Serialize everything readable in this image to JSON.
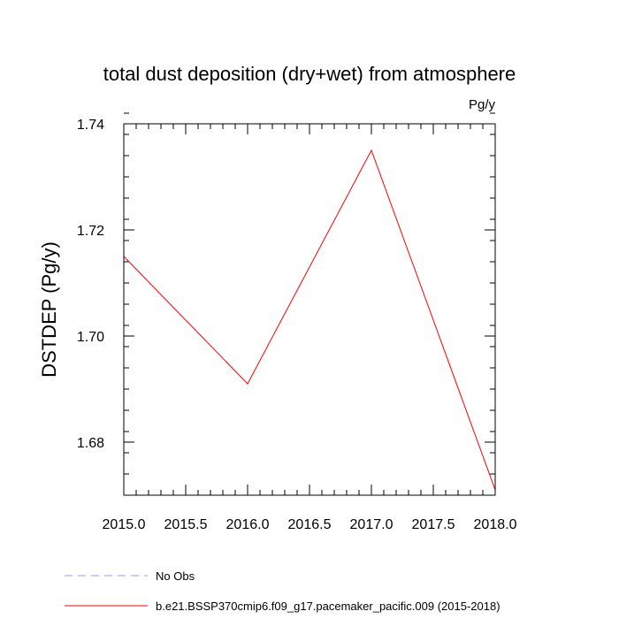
{
  "chart_data": {
    "type": "line",
    "title": "total dust deposition (dry+wet) from atmosphere",
    "units": "Pg/y",
    "xlabel": "",
    "ylabel": "DSTDEP  (Pg/y)",
    "xlim": [
      2015.0,
      2018.0
    ],
    "ylim": [
      1.67,
      1.74
    ],
    "x_ticks": [
      "2015.0",
      "2015.5",
      "2016.0",
      "2016.5",
      "2017.0",
      "2017.5",
      "2018.0"
    ],
    "y_ticks": [
      "1.68",
      "1.70",
      "1.72",
      "1.74"
    ],
    "grid": false,
    "legend_position": "bottom",
    "series": [
      {
        "name": "No Obs",
        "color": "#9999ff",
        "style": "dashed",
        "x": [],
        "y": []
      },
      {
        "name": "b.e21.BSSP370cmip6.f09_g17.pacemaker_pacific.009 (2015-2018)",
        "color": "#ff0000",
        "style": "solid",
        "x": [
          2015,
          2016,
          2017,
          2018
        ],
        "y": [
          1.715,
          1.691,
          1.735,
          1.671
        ]
      }
    ]
  }
}
